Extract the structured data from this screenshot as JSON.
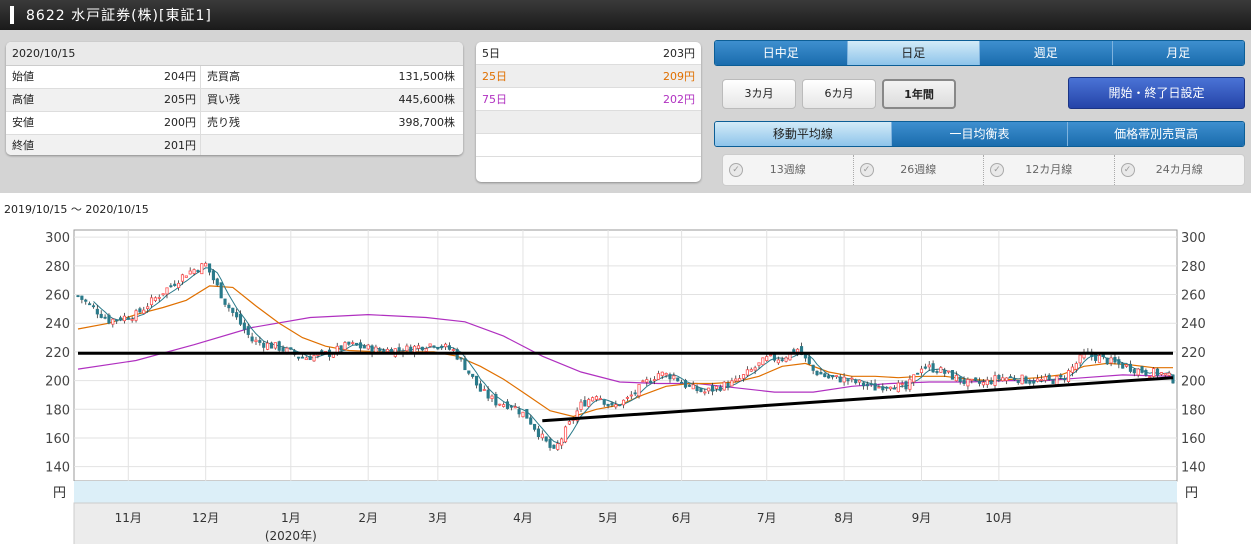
{
  "header": {
    "title": "8622 水戸証券(株)[東証1]"
  },
  "prices": {
    "date": "2020/10/15",
    "rows": [
      {
        "l1": "始値",
        "v1": "204円",
        "l2": "売買高",
        "v2": "131,500株"
      },
      {
        "l1": "高値",
        "v1": "205円",
        "l2": "買い残",
        "v2": "445,600株"
      },
      {
        "l1": "安値",
        "v1": "200円",
        "l2": "売り残",
        "v2": "398,700株"
      },
      {
        "l1": "終値",
        "v1": "201円",
        "l2": "",
        "v2": ""
      }
    ]
  },
  "ma": [
    {
      "label": "5日",
      "value": "203円",
      "color": "#222222"
    },
    {
      "label": "25日",
      "value": "209円",
      "color": "#e07000"
    },
    {
      "label": "75日",
      "value": "202円",
      "color": "#b030c0"
    }
  ],
  "tabs": {
    "t1": "日中足",
    "t2": "日足",
    "t3": "週足",
    "t4": "月足"
  },
  "periods": {
    "p1": "3カ月",
    "p2": "6カ月",
    "p3": "1年間"
  },
  "set_button": "開始・終了日設定",
  "view_tabs": {
    "v1": "移動平均線",
    "v2": "一目均衡表",
    "v3": "価格帯別売買高"
  },
  "checks": {
    "c1": "13週線",
    "c2": "26週線",
    "c3": "12カ月線",
    "c4": "24カ月線"
  },
  "range_label": "2019/10/15 ～ 2020/10/15",
  "chart_data": {
    "type": "candlestick",
    "ylim": [
      130,
      305
    ],
    "yticks": [
      140,
      160,
      180,
      200,
      220,
      240,
      260,
      280,
      300
    ],
    "unit_label": "円",
    "months": [
      "11月",
      "12月",
      "1月",
      "2月",
      "3月",
      "4月",
      "5月",
      "6月",
      "7月",
      "8月",
      "9月",
      "10月"
    ],
    "month_sub": "(2020年)",
    "anchors": [
      [
        0,
        259
      ],
      [
        8,
        242
      ],
      [
        15,
        246
      ],
      [
        22,
        262
      ],
      [
        28,
        275
      ],
      [
        33,
        281
      ],
      [
        38,
        255
      ],
      [
        45,
        228
      ],
      [
        52,
        223
      ],
      [
        58,
        216
      ],
      [
        65,
        219
      ],
      [
        70,
        225
      ],
      [
        78,
        221
      ],
      [
        85,
        222
      ],
      [
        92,
        226
      ],
      [
        97,
        221
      ],
      [
        100,
        210
      ],
      [
        104,
        193
      ],
      [
        108,
        185
      ],
      [
        112,
        183
      ],
      [
        116,
        175
      ],
      [
        120,
        160
      ],
      [
        123,
        150
      ],
      [
        126,
        165
      ],
      [
        130,
        183
      ],
      [
        134,
        191
      ],
      [
        138,
        181
      ],
      [
        142,
        187
      ],
      [
        146,
        197
      ],
      [
        150,
        205
      ],
      [
        154,
        203
      ],
      [
        158,
        195
      ],
      [
        162,
        192
      ],
      [
        166,
        196
      ],
      [
        170,
        199
      ],
      [
        174,
        207
      ],
      [
        178,
        215
      ],
      [
        182,
        216
      ],
      [
        186,
        222
      ],
      [
        190,
        207
      ],
      [
        194,
        202
      ],
      [
        198,
        201
      ],
      [
        202,
        198
      ],
      [
        206,
        195
      ],
      [
        210,
        198
      ],
      [
        214,
        194
      ],
      [
        218,
        210
      ],
      [
        222,
        208
      ],
      [
        226,
        203
      ],
      [
        230,
        198
      ],
      [
        234,
        198
      ],
      [
        238,
        202
      ],
      [
        242,
        202
      ],
      [
        246,
        200
      ],
      [
        250,
        200
      ],
      [
        254,
        201
      ],
      [
        256,
        206
      ],
      [
        260,
        218
      ],
      [
        264,
        216
      ],
      [
        268,
        212
      ],
      [
        272,
        209
      ],
      [
        276,
        206
      ],
      [
        280,
        205
      ],
      [
        283,
        201
      ]
    ],
    "ma25": [
      [
        0,
        236
      ],
      [
        8,
        240
      ],
      [
        15,
        246
      ],
      [
        22,
        251
      ],
      [
        28,
        256
      ],
      [
        34,
        266
      ],
      [
        40,
        265
      ],
      [
        46,
        252
      ],
      [
        52,
        240
      ],
      [
        58,
        230
      ],
      [
        64,
        224
      ],
      [
        70,
        221
      ],
      [
        78,
        220
      ],
      [
        86,
        220
      ],
      [
        92,
        220
      ],
      [
        98,
        217
      ],
      [
        104,
        210
      ],
      [
        110,
        201
      ],
      [
        116,
        190
      ],
      [
        122,
        179
      ],
      [
        128,
        175
      ],
      [
        134,
        180
      ],
      [
        140,
        183
      ],
      [
        146,
        190
      ],
      [
        152,
        196
      ],
      [
        158,
        198
      ],
      [
        164,
        198
      ],
      [
        170,
        199
      ],
      [
        176,
        203
      ],
      [
        182,
        210
      ],
      [
        188,
        212
      ],
      [
        194,
        206
      ],
      [
        200,
        203
      ],
      [
        206,
        203
      ],
      [
        212,
        202
      ],
      [
        218,
        203
      ],
      [
        224,
        203
      ],
      [
        230,
        201
      ],
      [
        236,
        200
      ],
      [
        242,
        201
      ],
      [
        248,
        202
      ],
      [
        254,
        204
      ],
      [
        260,
        210
      ],
      [
        266,
        212
      ],
      [
        272,
        211
      ],
      [
        278,
        209
      ],
      [
        283,
        209
      ]
    ],
    "ma75": [
      [
        0,
        208
      ],
      [
        15,
        214
      ],
      [
        30,
        225
      ],
      [
        45,
        237
      ],
      [
        60,
        244
      ],
      [
        75,
        246
      ],
      [
        90,
        244
      ],
      [
        100,
        241
      ],
      [
        110,
        231
      ],
      [
        120,
        217
      ],
      [
        130,
        206
      ],
      [
        140,
        199
      ],
      [
        150,
        198
      ],
      [
        160,
        198
      ],
      [
        170,
        195
      ],
      [
        180,
        192
      ],
      [
        190,
        192
      ],
      [
        200,
        196
      ],
      [
        210,
        198
      ],
      [
        220,
        199
      ],
      [
        230,
        199
      ],
      [
        240,
        200
      ],
      [
        250,
        200
      ],
      [
        260,
        202
      ],
      [
        270,
        204
      ],
      [
        283,
        203
      ]
    ],
    "resistance": [
      [
        0,
        219
      ],
      [
        283,
        219
      ]
    ],
    "support": [
      [
        120,
        172
      ],
      [
        283,
        202
      ]
    ],
    "colors": {
      "up": "#ff5050",
      "down": "#2a7a8a",
      "ma25": "#e07000",
      "ma75": "#b030c0",
      "ma5": "#2a7a8a",
      "trend": "#000000"
    }
  }
}
